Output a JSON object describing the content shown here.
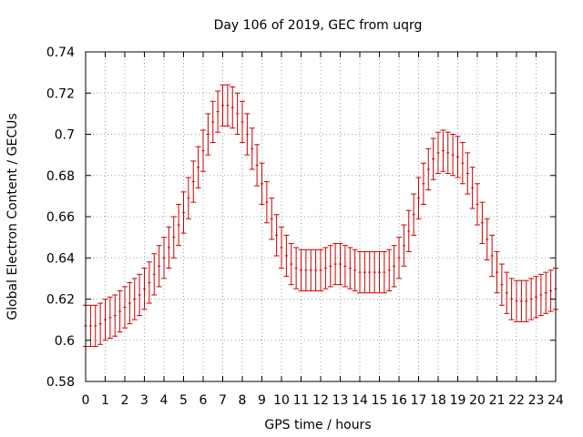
{
  "chart_data": {
    "type": "scatter",
    "title": "Day 106 of 2019, GEC from uqrg",
    "xlabel": "GPS time / hours",
    "ylabel": "Global Electron Content / GECUs",
    "xlim": [
      0,
      24
    ],
    "ylim": [
      0.58,
      0.74
    ],
    "xticks": [
      0,
      1,
      2,
      3,
      4,
      5,
      6,
      7,
      8,
      9,
      10,
      11,
      12,
      13,
      14,
      15,
      16,
      17,
      18,
      19,
      20,
      21,
      22,
      23,
      24
    ],
    "yticks": [
      0.58,
      0.6,
      0.62,
      0.64,
      0.66,
      0.68,
      0.7,
      0.72,
      0.74
    ],
    "ytick_labels": [
      "0.58",
      "0.6",
      "0.62",
      "0.64",
      "0.66",
      "0.68",
      "0.7",
      "0.72",
      "0.74"
    ],
    "grid": true,
    "marker_color": "#cc0000",
    "error": 0.01,
    "series": [
      {
        "name": "GEC",
        "x": [
          0,
          0.25,
          0.5,
          0.75,
          1,
          1.25,
          1.5,
          1.75,
          2,
          2.25,
          2.5,
          2.75,
          3,
          3.25,
          3.5,
          3.75,
          4,
          4.25,
          4.5,
          4.75,
          5,
          5.25,
          5.5,
          5.75,
          6,
          6.25,
          6.5,
          6.75,
          7,
          7.25,
          7.5,
          7.75,
          8,
          8.25,
          8.5,
          8.75,
          9,
          9.25,
          9.5,
          9.75,
          10,
          10.25,
          10.5,
          10.75,
          11,
          11.25,
          11.5,
          11.75,
          12,
          12.25,
          12.5,
          12.75,
          13,
          13.25,
          13.5,
          13.75,
          14,
          14.25,
          14.5,
          14.75,
          15,
          15.25,
          15.5,
          15.75,
          16,
          16.25,
          16.5,
          16.75,
          17,
          17.25,
          17.5,
          17.75,
          18,
          18.25,
          18.5,
          18.75,
          19,
          19.25,
          19.5,
          19.75,
          20,
          20.25,
          20.5,
          20.75,
          21,
          21.25,
          21.5,
          21.75,
          22,
          22.25,
          22.5,
          22.75,
          23,
          23.25,
          23.5,
          23.75,
          24
        ],
        "values": [
          0.607,
          0.607,
          0.607,
          0.608,
          0.61,
          0.611,
          0.612,
          0.614,
          0.616,
          0.618,
          0.62,
          0.622,
          0.625,
          0.628,
          0.632,
          0.636,
          0.64,
          0.645,
          0.65,
          0.656,
          0.662,
          0.669,
          0.677,
          0.684,
          0.692,
          0.7,
          0.706,
          0.711,
          0.714,
          0.714,
          0.713,
          0.71,
          0.706,
          0.7,
          0.693,
          0.685,
          0.676,
          0.667,
          0.659,
          0.651,
          0.645,
          0.641,
          0.637,
          0.635,
          0.634,
          0.634,
          0.634,
          0.634,
          0.634,
          0.635,
          0.636,
          0.637,
          0.637,
          0.636,
          0.635,
          0.634,
          0.633,
          0.633,
          0.633,
          0.633,
          0.633,
          0.633,
          0.634,
          0.636,
          0.64,
          0.646,
          0.653,
          0.661,
          0.669,
          0.676,
          0.683,
          0.688,
          0.691,
          0.692,
          0.691,
          0.69,
          0.689,
          0.686,
          0.681,
          0.674,
          0.666,
          0.657,
          0.649,
          0.641,
          0.633,
          0.627,
          0.623,
          0.62,
          0.619,
          0.619,
          0.619,
          0.62,
          0.621,
          0.622,
          0.623,
          0.624,
          0.625
        ]
      }
    ]
  }
}
